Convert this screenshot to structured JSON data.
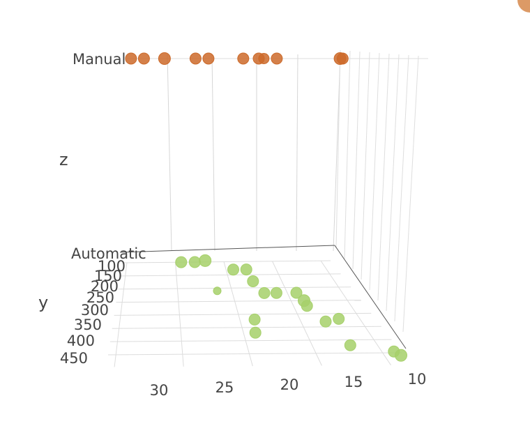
{
  "chart_data": {
    "type": "scatter3d",
    "axes": {
      "x": {
        "title": "",
        "ticks": [
          30,
          25,
          20,
          15,
          10
        ],
        "reversed": true
      },
      "y": {
        "title": "y",
        "ticks": [
          100,
          150,
          200,
          250,
          300,
          350,
          400,
          450
        ]
      },
      "z": {
        "title": "z",
        "categories": [
          "Automatic",
          "Manual"
        ]
      }
    },
    "grid": true,
    "legend": "none",
    "series": [
      {
        "z": "Manual",
        "color": "#cc6a2a",
        "points": [
          {
            "x": 30.4,
            "y": 100,
            "size": 14
          },
          {
            "x": 29.4,
            "y": 100,
            "size": 14
          },
          {
            "x": 27.8,
            "y": 100,
            "size": 15
          },
          {
            "x": 25.4,
            "y": 100,
            "size": 14
          },
          {
            "x": 24.4,
            "y": 100,
            "size": 14
          },
          {
            "x": 21.7,
            "y": 100,
            "size": 14
          },
          {
            "x": 20.5,
            "y": 100,
            "size": 14
          },
          {
            "x": 20.1,
            "y": 100,
            "size": 13
          },
          {
            "x": 19.1,
            "y": 100,
            "size": 14
          },
          {
            "x": 14.2,
            "y": 100,
            "size": 15
          },
          {
            "x": 14.0,
            "y": 100,
            "size": 14
          }
        ]
      },
      {
        "z": "Automatic",
        "color": "#a6d06a",
        "points": [
          {
            "x": 24.4,
            "y": 100,
            "size": 14
          },
          {
            "x": 23.0,
            "y": 100,
            "size": 14
          },
          {
            "x": 21.9,
            "y": 95,
            "size": 15
          },
          {
            "x": 19.3,
            "y": 130,
            "size": 14
          },
          {
            "x": 18.0,
            "y": 130,
            "size": 14
          },
          {
            "x": 17.8,
            "y": 175,
            "size": 14
          },
          {
            "x": 21.4,
            "y": 210,
            "size": 9
          },
          {
            "x": 17.2,
            "y": 220,
            "size": 14
          },
          {
            "x": 16.1,
            "y": 220,
            "size": 14
          },
          {
            "x": 14.3,
            "y": 220,
            "size": 14
          },
          {
            "x": 14.0,
            "y": 250,
            "size": 15
          },
          {
            "x": 14.0,
            "y": 270,
            "size": 14
          },
          {
            "x": 18.9,
            "y": 320,
            "size": 14
          },
          {
            "x": 19.2,
            "y": 370,
            "size": 14
          },
          {
            "x": 13.2,
            "y": 330,
            "size": 14
          },
          {
            "x": 12.0,
            "y": 320,
            "size": 14
          },
          {
            "x": 12.4,
            "y": 420,
            "size": 14
          },
          {
            "x": 9.5,
            "y": 445,
            "size": 14
          },
          {
            "x": 9.2,
            "y": 460,
            "size": 15
          }
        ]
      }
    ]
  }
}
